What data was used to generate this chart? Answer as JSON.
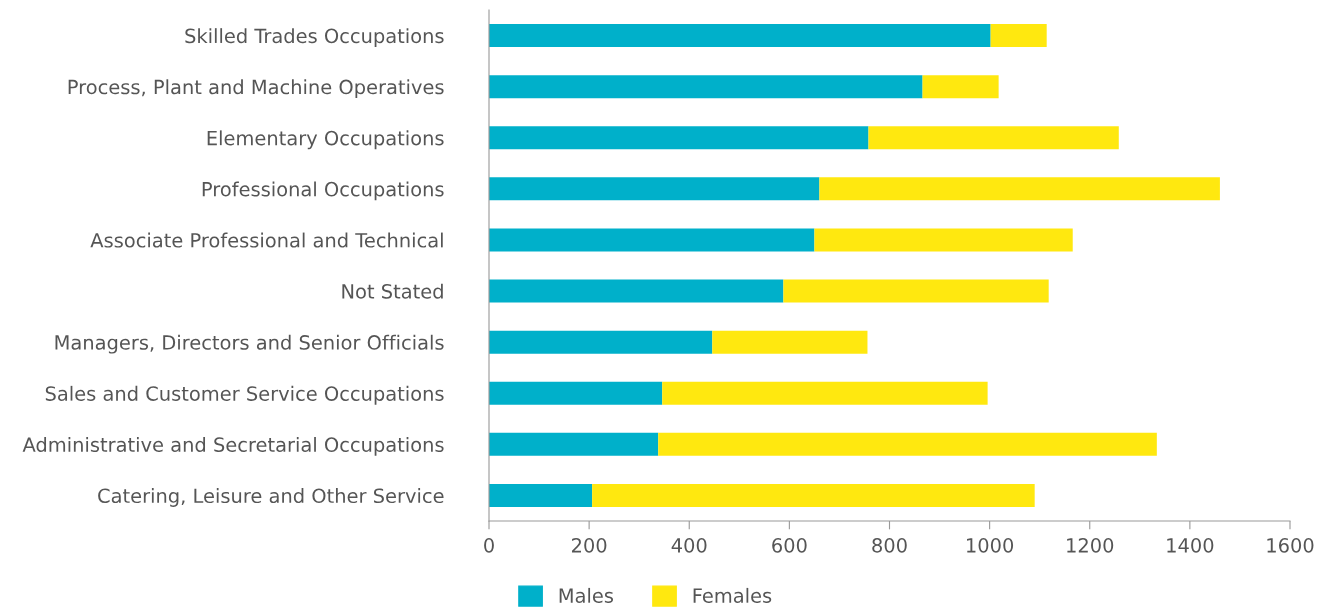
{
  "chart_data": {
    "type": "bar",
    "orientation": "horizontal",
    "stacked": true,
    "categories": [
      "Skilled Trades Occupations",
      "Process, Plant and Machine Operatives",
      "Elementary Occupations",
      "Professional Occupations",
      "Associate Professional and Technical",
      "Not Stated",
      "Managers, Directors and Senior Officials",
      "Sales and Customer Service Occupations",
      "Administrative and Secretarial Occupations",
      "Catering, Leisure and Other Service"
    ],
    "series": [
      {
        "name": "Males",
        "color": "#00b0ca",
        "values": [
          1002,
          866,
          758,
          660,
          650,
          588,
          446,
          346,
          338,
          206
        ]
      },
      {
        "name": "Females",
        "color": "#ffe80f",
        "values": [
          112,
          152,
          500,
          800,
          516,
          530,
          310,
          650,
          996,
          884
        ]
      }
    ],
    "xlim": [
      0,
      1600
    ],
    "xticks": [
      0,
      200,
      400,
      600,
      800,
      1000,
      1200,
      1400,
      1600
    ],
    "grid": false,
    "legend": "bottom"
  }
}
